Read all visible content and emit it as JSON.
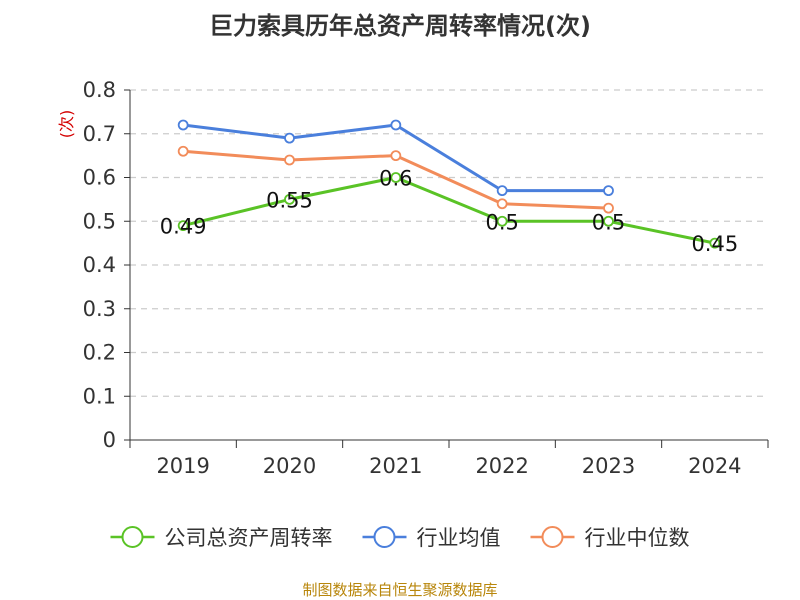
{
  "chart_data": {
    "type": "line",
    "title": "巨力索具历年总资产周转率情况(次)",
    "ylabel": "(次)",
    "xlabel": "",
    "categories": [
      "2019",
      "2020",
      "2021",
      "2022",
      "2023",
      "2024"
    ],
    "ylim": [
      0,
      0.8
    ],
    "yticks": [
      "0",
      "0.1",
      "0.2",
      "0.3",
      "0.4",
      "0.5",
      "0.6",
      "0.7",
      "0.8"
    ],
    "grid": true,
    "legend_position": "bottom",
    "series": [
      {
        "name": "公司总资产周转率",
        "color": "#5ac326",
        "values": [
          0.49,
          0.55,
          0.6,
          0.5,
          0.5,
          0.45
        ],
        "labels": [
          "0.49",
          "0.55",
          "0.6",
          "0.5",
          "0.5",
          "0.45"
        ]
      },
      {
        "name": "行业均值",
        "color": "#4a7fdc",
        "values": [
          0.72,
          0.69,
          0.72,
          0.57,
          0.57,
          null
        ]
      },
      {
        "name": "行业中位数",
        "color": "#f28c5a",
        "values": [
          0.66,
          0.64,
          0.65,
          0.54,
          0.53,
          null
        ]
      }
    ],
    "source": "制图数据来自恒生聚源数据库"
  }
}
